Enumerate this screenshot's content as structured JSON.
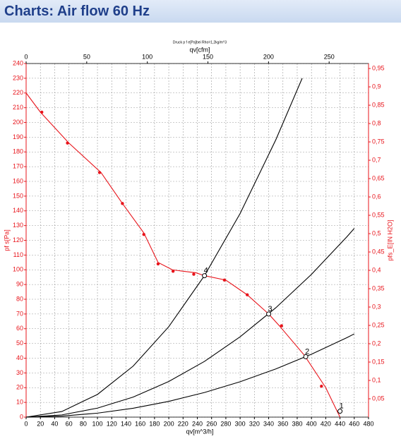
{
  "header": {
    "title": "Charts: Air flow 60 Hz"
  },
  "chart_data": {
    "type": "line",
    "title": "Druck p f e[Pa]bei Rho=1,2kg/m^3",
    "xlabel": "qv[m^3/h]",
    "x2label": "qv[cfm]",
    "ylabel": "pf s[Pa]",
    "y2label": "pfs_E[IN H2O]",
    "xlim": [
      0,
      480
    ],
    "xticks": [
      0,
      20,
      40,
      60,
      80,
      100,
      120,
      140,
      160,
      180,
      200,
      220,
      240,
      260,
      280,
      300,
      320,
      340,
      360,
      380,
      400,
      420,
      440,
      460,
      480
    ],
    "x2lim": [
      0,
      282.5
    ],
    "x2ticks": [
      0,
      50,
      100,
      150,
      200,
      250
    ],
    "ylim": [
      0,
      240
    ],
    "yticks": [
      0,
      10,
      20,
      30,
      40,
      50,
      60,
      70,
      80,
      90,
      100,
      110,
      120,
      130,
      140,
      150,
      160,
      170,
      180,
      190,
      200,
      210,
      220,
      230,
      240
    ],
    "y2lim": [
      0,
      0.9636
    ],
    "y2ticks": [
      {
        "value": 0.05,
        "label": "0,05"
      },
      {
        "value": 0.1,
        "label": "0,1"
      },
      {
        "value": 0.15,
        "label": "0,15"
      },
      {
        "value": 0.2,
        "label": "0,2"
      },
      {
        "value": 0.25,
        "label": "0,25"
      },
      {
        "value": 0.3,
        "label": "0,3"
      },
      {
        "value": 0.35,
        "label": "0,35"
      },
      {
        "value": 0.4,
        "label": "0,4"
      },
      {
        "value": 0.45,
        "label": "0,45"
      },
      {
        "value": 0.5,
        "label": "0,5"
      },
      {
        "value": 0.55,
        "label": "0,55"
      },
      {
        "value": 0.6,
        "label": "0,6"
      },
      {
        "value": 0.65,
        "label": "0,65"
      },
      {
        "value": 0.7,
        "label": "0,7"
      },
      {
        "value": 0.75,
        "label": "0,75"
      },
      {
        "value": 0.8,
        "label": "0,8"
      },
      {
        "value": 0.85,
        "label": "0,85"
      },
      {
        "value": 0.9,
        "label": "0,9"
      },
      {
        "value": 0.95,
        "label": "0,95"
      }
    ],
    "grid": true,
    "axis_color": "#e8141b",
    "series": [
      {
        "color": "#e8141b",
        "x": [
          0,
          20,
          60,
          105,
          135,
          165,
          185,
          205,
          220,
          238,
          250,
          280,
          310,
          340,
          355,
          390,
          420,
          440
        ],
        "values": [
          220,
          207,
          186,
          166,
          145,
          125,
          105,
          100,
          99,
          98,
          96,
          93,
          83,
          70,
          62,
          42,
          20,
          0
        ]
      },
      {
        "color": "#000000",
        "x": [
          0,
          50,
          100,
          150,
          200,
          250,
          300,
          350,
          387
        ],
        "values": [
          0,
          3.8,
          15.4,
          34.6,
          61.4,
          96,
          138.2,
          188.2,
          230
        ]
      },
      {
        "color": "#000000",
        "x": [
          0,
          50,
          100,
          150,
          200,
          250,
          300,
          350,
          400,
          450,
          460
        ],
        "values": [
          0,
          1.5,
          6.1,
          13.6,
          24.2,
          37.8,
          54.5,
          74.2,
          96.9,
          122.6,
          128.1
        ]
      },
      {
        "color": "#000000",
        "x": [
          0,
          50,
          100,
          150,
          200,
          250,
          300,
          350,
          400,
          450,
          460
        ],
        "values": [
          0,
          0.7,
          2.7,
          6,
          10.7,
          16.7,
          24,
          32.7,
          42.7,
          54,
          56.5
        ]
      }
    ],
    "markers": {
      "color": "#e8141b",
      "x": [
        22,
        58,
        103,
        135,
        165,
        185,
        206,
        235,
        278,
        310,
        358,
        392,
        414
      ],
      "values": [
        207,
        186,
        166,
        145,
        124,
        104,
        99,
        97,
        93,
        83,
        62,
        41,
        21
      ]
    },
    "operating_points": [
      {
        "label": "4",
        "x": 250,
        "y": 96
      },
      {
        "label": "3",
        "x": 340,
        "y": 70
      },
      {
        "label": "2",
        "x": 392,
        "y": 41
      },
      {
        "label": "1",
        "x": 440,
        "y": 4
      }
    ]
  }
}
